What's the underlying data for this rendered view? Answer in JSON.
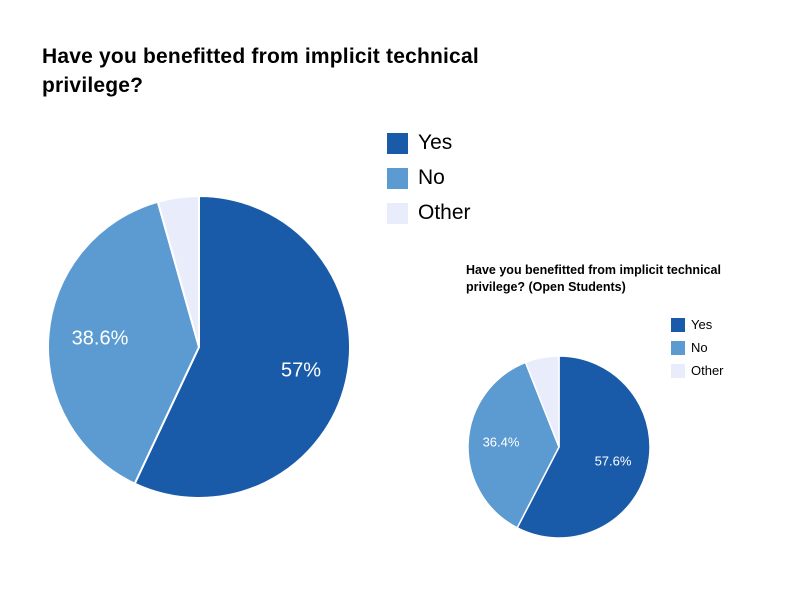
{
  "page": {
    "background_color": "#ffffff"
  },
  "chart_data": [
    {
      "type": "pie",
      "title": "Have you benefitted from implicit technical privilege?",
      "categories": [
        "Yes",
        "No",
        "Other"
      ],
      "values": [
        57,
        38.6,
        4.4
      ],
      "slice_labels": [
        "57%",
        "38.6%",
        ""
      ],
      "colors": [
        "#1a5ba9",
        "#5b9bd1",
        "#e9edfb"
      ],
      "legend_position": "right-of-title",
      "label_color": "#ffffff",
      "start_angle_deg": 0,
      "direction": "clockwise"
    },
    {
      "type": "pie",
      "title": "Have you benefitted from implicit technical privilege? (Open Students)",
      "categories": [
        "Yes",
        "No",
        "Other"
      ],
      "values": [
        57.6,
        36.4,
        6
      ],
      "slice_labels": [
        "57.6%",
        "36.4%",
        ""
      ],
      "colors": [
        "#1a5ba9",
        "#5b9bd1",
        "#e9edfb"
      ],
      "legend_position": "right",
      "label_color": "#ffffff",
      "start_angle_deg": 0,
      "direction": "clockwise"
    }
  ]
}
